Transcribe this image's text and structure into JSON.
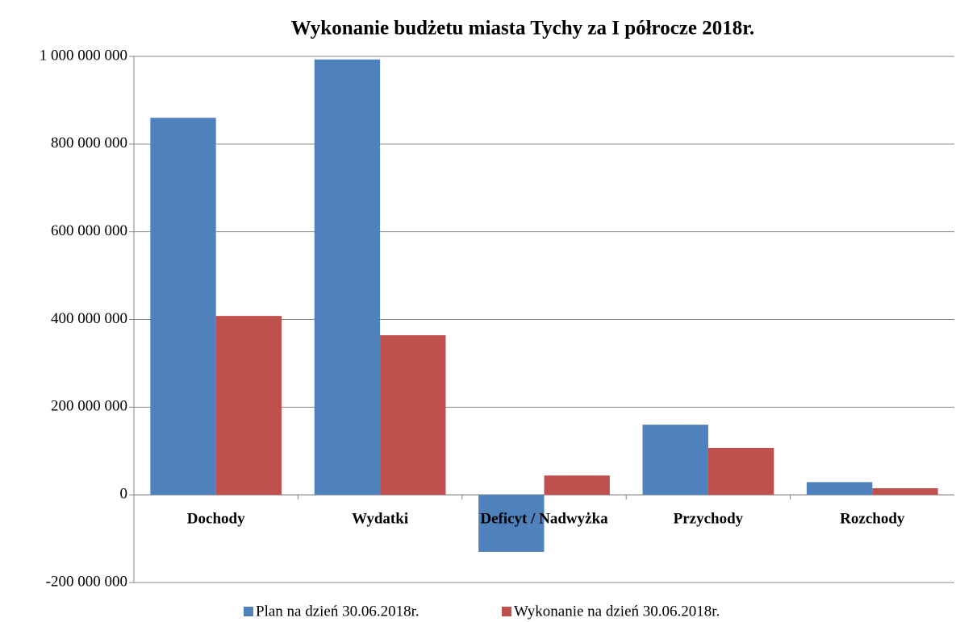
{
  "chart_data": {
    "type": "bar",
    "title": "Wykonanie budżetu miasta Tychy za I półrocze 2018r.",
    "categories": [
      "Dochody",
      "Wydatki",
      "Deficyt / Nadwyżka",
      "Przychody",
      "Rozchody"
    ],
    "series": [
      {
        "name": "Plan na dzień 30.06.2018r.",
        "color": "#4f81bd",
        "values": [
          860000000,
          993000000,
          -130000000,
          160000000,
          29000000
        ]
      },
      {
        "name": "Wykonanie na dzień 30.06.2018r.",
        "color": "#c0504d",
        "values": [
          408000000,
          364000000,
          44000000,
          107000000,
          15000000
        ]
      }
    ],
    "ylim": [
      -200000000,
      1000000000
    ],
    "yticks": [
      {
        "value": -200000000,
        "label": "-200 000 000"
      },
      0,
      {
        "value": 200000000,
        "label": "200 000 000"
      },
      {
        "value": 400000000,
        "label": "400 000 000"
      },
      {
        "value": 600000000,
        "label": "600 000 000"
      },
      {
        "value": 800000000,
        "label": "800 000 000"
      },
      {
        "value": 1000000000,
        "label": "1 000 000 000"
      }
    ],
    "grid": true,
    "legend": "bottom"
  }
}
